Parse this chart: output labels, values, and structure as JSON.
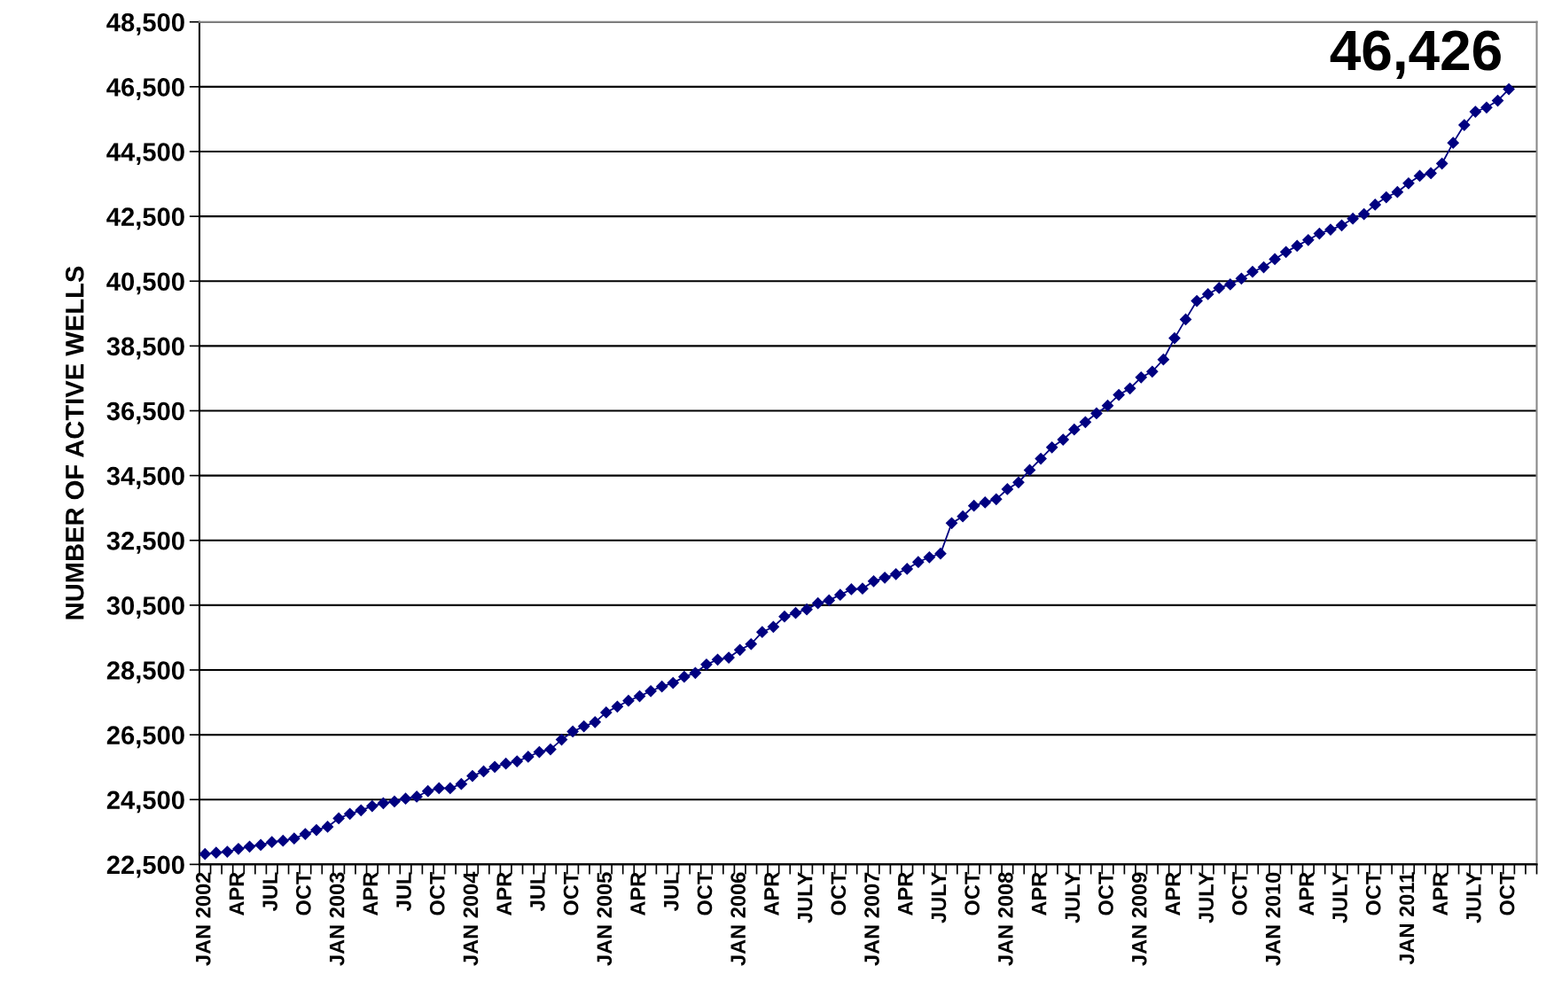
{
  "chart_data": {
    "type": "line",
    "ylabel": "NUMBER OF ACTIVE WELLS",
    "categories": [
      "JAN 2002",
      null,
      null,
      "APR",
      null,
      null,
      "JUL",
      null,
      null,
      "OCT",
      null,
      null,
      "JAN 2003",
      null,
      null,
      "APR",
      null,
      null,
      "JUL",
      null,
      null,
      "OCT",
      null,
      null,
      "JAN 2004",
      null,
      null,
      "APR",
      null,
      null,
      "JUL",
      null,
      null,
      "OCT",
      null,
      null,
      "JAN 2005",
      null,
      null,
      "APR",
      null,
      null,
      "JUL",
      null,
      null,
      "OCT",
      null,
      null,
      "JAN 2006",
      null,
      null,
      "APR",
      null,
      null,
      "JULY",
      null,
      null,
      "OCT",
      null,
      null,
      "JAN 2007",
      null,
      null,
      "APR",
      null,
      null,
      "JULY",
      null,
      null,
      "OCT",
      null,
      null,
      "JAN 2008",
      null,
      null,
      "APR",
      null,
      null,
      "JULY",
      null,
      null,
      "OCT",
      null,
      null,
      "JAN 2009",
      null,
      null,
      "APR",
      null,
      null,
      "JULY",
      null,
      null,
      "OCT",
      null,
      null,
      "JAN 2010",
      null,
      null,
      "APR",
      null,
      null,
      "JULY",
      null,
      null,
      "OCT",
      null,
      null,
      "JAN 2011",
      null,
      null,
      "APR",
      null,
      null,
      "JULY",
      null,
      null,
      "OCT",
      null,
      null
    ],
    "series": [
      {
        "color": "#000080",
        "values": [
          22820,
          22860,
          22890,
          22980,
          23050,
          23100,
          23190,
          23230,
          23300,
          23440,
          23560,
          23660,
          23920,
          24060,
          24170,
          24300,
          24390,
          24440,
          24530,
          24590,
          24760,
          24850,
          24850,
          24980,
          25230,
          25370,
          25510,
          25610,
          25680,
          25820,
          25970,
          26050,
          26350,
          26600,
          26760,
          26890,
          27190,
          27370,
          27550,
          27690,
          27850,
          27990,
          28100,
          28290,
          28410,
          28670,
          28820,
          28880,
          29120,
          29300,
          29670,
          29830,
          30150,
          30260,
          30370,
          30560,
          30650,
          30820,
          30990,
          31010,
          31240,
          31350,
          31460,
          31620,
          31830,
          31980,
          32090,
          33030,
          33240,
          33570,
          33670,
          33770,
          34080,
          34290,
          34670,
          35020,
          35370,
          35610,
          35920,
          36150,
          36420,
          36660,
          36990,
          37190,
          37530,
          37710,
          38080,
          38740,
          39320,
          39890,
          40100,
          40290,
          40400,
          40580,
          40790,
          40930,
          41180,
          41400,
          41590,
          41770,
          41970,
          42090,
          42220,
          42430,
          42570,
          42860,
          43090,
          43250,
          43520,
          43750,
          43830,
          44130,
          44770,
          45320,
          45730,
          45860,
          46070,
          46426,
          null,
          null
        ],
        "value_labels": [
          null,
          null,
          null,
          null,
          null,
          null,
          null,
          null,
          null,
          null,
          null,
          null,
          null,
          null,
          null,
          null,
          null,
          null,
          null,
          null,
          null,
          null,
          null,
          null,
          null,
          null,
          null,
          null,
          null,
          null,
          null,
          null,
          null,
          null,
          null,
          null,
          null,
          null,
          null,
          null,
          null,
          null,
          null,
          null,
          null,
          null,
          null,
          null,
          null,
          null,
          null,
          null,
          null,
          null,
          null,
          null,
          null,
          null,
          null,
          null,
          null,
          null,
          null,
          null,
          null,
          null,
          null,
          null,
          null,
          null,
          null,
          null,
          null,
          null,
          null,
          null,
          null,
          null,
          null,
          null,
          null,
          null,
          null,
          null,
          null,
          null,
          null,
          null,
          null,
          null,
          null,
          null,
          null,
          null,
          null,
          null,
          null,
          null,
          null,
          null,
          null,
          null,
          null,
          null,
          null,
          null,
          null,
          null,
          null,
          null,
          null,
          null,
          null,
          null,
          null,
          null,
          null,
          "46,426",
          null,
          null
        ]
      }
    ],
    "ylim": [
      22500,
      48500
    ],
    "yticks": [
      {
        "value": 22500,
        "label": "22,500"
      },
      {
        "value": 24500,
        "label": "24,500"
      },
      {
        "value": 26500,
        "label": "26,500"
      },
      {
        "value": 28500,
        "label": "28,500"
      },
      {
        "value": 30500,
        "label": "30,500"
      },
      {
        "value": 32500,
        "label": "32,500"
      },
      {
        "value": 34500,
        "label": "34,500"
      },
      {
        "value": 36500,
        "label": "36,500"
      },
      {
        "value": 38500,
        "label": "38,500"
      },
      {
        "value": 40500,
        "label": "40,500"
      },
      {
        "value": 42500,
        "label": "42,500"
      },
      {
        "value": 44500,
        "label": "44,500"
      },
      {
        "value": 46500,
        "label": "46,500"
      },
      {
        "value": 48500,
        "label": "48,500"
      }
    ],
    "grid": "y",
    "marker": "diamond",
    "line_style": "solid"
  }
}
